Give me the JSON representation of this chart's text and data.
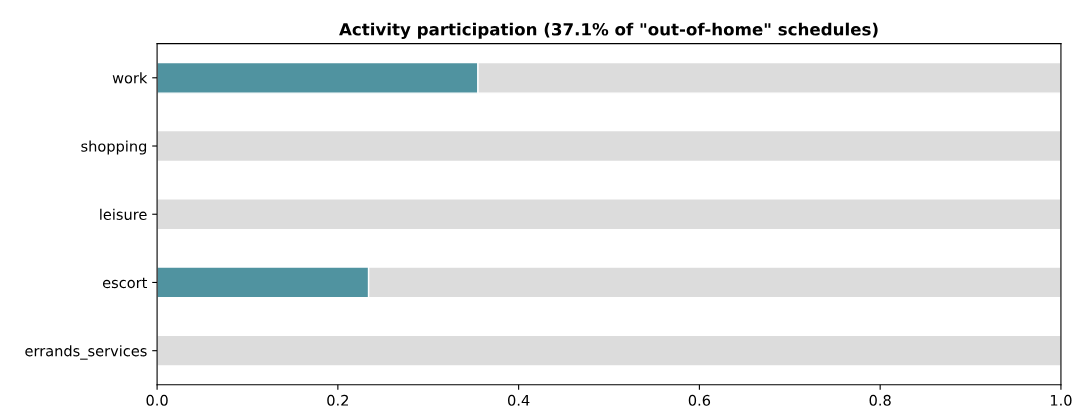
{
  "chart_data": {
    "type": "bar",
    "orientation": "horizontal",
    "stacked": true,
    "title": "Activity participation (37.1% of \"out-of-home\" schedules)",
    "categories": [
      "work",
      "shopping",
      "leisure",
      "escort",
      "errands_services"
    ],
    "series": [
      {
        "color": "#5093a0",
        "values": [
          0.355,
          0,
          0,
          0.234,
          0
        ]
      },
      {
        "color": "#dcdcdc",
        "values": [
          0.645,
          1,
          1,
          0.766,
          1
        ]
      }
    ],
    "xlim": [
      0,
      1
    ],
    "xticks": [
      {
        "value": 0,
        "label": "0.0"
      },
      0.2,
      0.4,
      0.6,
      0.8,
      {
        "value": 1,
        "label": "1.0"
      }
    ],
    "grid": false,
    "legend": false
  }
}
